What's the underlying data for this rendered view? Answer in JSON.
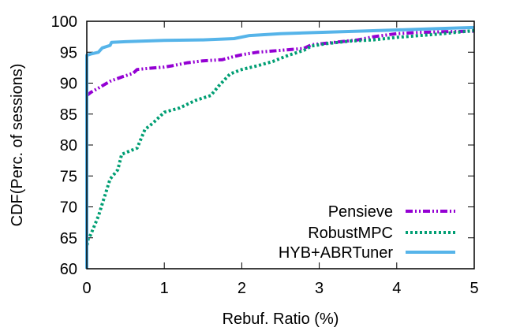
{
  "chart_data": {
    "type": "line",
    "title": "",
    "xlabel": "Rebuf. Ratio (%)",
    "ylabel": "CDF(Perc. of sessions)",
    "xlim": [
      0,
      5
    ],
    "ylim": [
      60,
      100
    ],
    "xticks": [
      "0",
      "1",
      "2",
      "3",
      "4",
      "5"
    ],
    "yticks": [
      "60",
      "65",
      "70",
      "75",
      "80",
      "85",
      "90",
      "95",
      "100"
    ],
    "grid": false,
    "legend_position": "bottom-right",
    "series": [
      {
        "name": "Pensieve",
        "color": "#9400d3",
        "style": "dash-dot-dot",
        "points": [
          [
            0,
            60
          ],
          [
            0,
            88
          ],
          [
            0.05,
            88.5
          ],
          [
            0.15,
            89.2
          ],
          [
            0.3,
            90.3
          ],
          [
            0.45,
            91.0
          ],
          [
            0.6,
            91.6
          ],
          [
            0.65,
            92.2
          ],
          [
            0.8,
            92.4
          ],
          [
            1.0,
            92.6
          ],
          [
            1.1,
            92.8
          ],
          [
            1.3,
            93.3
          ],
          [
            1.5,
            93.6
          ],
          [
            1.75,
            93.8
          ],
          [
            1.9,
            94.3
          ],
          [
            2.0,
            94.6
          ],
          [
            2.2,
            95.0
          ],
          [
            2.6,
            95.4
          ],
          [
            2.8,
            95.6
          ],
          [
            2.9,
            96.2
          ],
          [
            3.2,
            96.6
          ],
          [
            3.5,
            97.0
          ],
          [
            3.7,
            97.5
          ],
          [
            4.0,
            98.0
          ],
          [
            4.3,
            98.2
          ],
          [
            4.6,
            98.3
          ],
          [
            5.0,
            98.4
          ]
        ]
      },
      {
        "name": "RobustMPC",
        "color": "#009e73",
        "style": "dotted",
        "points": [
          [
            0,
            60
          ],
          [
            0,
            63.5
          ],
          [
            0.02,
            65
          ],
          [
            0.05,
            65.5
          ],
          [
            0.1,
            67
          ],
          [
            0.15,
            68.5
          ],
          [
            0.2,
            70.5
          ],
          [
            0.25,
            72.5
          ],
          [
            0.3,
            74.5
          ],
          [
            0.4,
            76
          ],
          [
            0.45,
            78.5
          ],
          [
            0.55,
            79
          ],
          [
            0.65,
            79.5
          ],
          [
            0.75,
            82.5
          ],
          [
            0.85,
            83.5
          ],
          [
            1.0,
            85.3
          ],
          [
            1.2,
            86
          ],
          [
            1.4,
            87.2
          ],
          [
            1.6,
            88
          ],
          [
            1.7,
            89.5
          ],
          [
            1.85,
            91.5
          ],
          [
            2.0,
            92.2
          ],
          [
            2.2,
            92.8
          ],
          [
            2.4,
            93.5
          ],
          [
            2.6,
            94.5
          ],
          [
            2.8,
            95.3
          ],
          [
            2.9,
            96.0
          ],
          [
            3.1,
            96.4
          ],
          [
            3.4,
            96.8
          ],
          [
            3.7,
            97.0
          ],
          [
            4.0,
            97.4
          ],
          [
            4.3,
            97.7
          ],
          [
            4.6,
            98.0
          ],
          [
            5.0,
            98.5
          ]
        ]
      },
      {
        "name": "HYB+ABRTuner",
        "color": "#56b4e9",
        "style": "solid",
        "points": [
          [
            0,
            60
          ],
          [
            0,
            94.5
          ],
          [
            0.05,
            94.7
          ],
          [
            0.15,
            95.0
          ],
          [
            0.2,
            95.7
          ],
          [
            0.3,
            96.1
          ],
          [
            0.32,
            96.6
          ],
          [
            0.5,
            96.7
          ],
          [
            1.0,
            96.9
          ],
          [
            1.5,
            97.0
          ],
          [
            1.9,
            97.2
          ],
          [
            2.1,
            97.7
          ],
          [
            2.5,
            98.0
          ],
          [
            3.0,
            98.2
          ],
          [
            3.5,
            98.4
          ],
          [
            4.0,
            98.6
          ],
          [
            4.5,
            98.8
          ],
          [
            5.0,
            99.0
          ]
        ]
      }
    ]
  }
}
